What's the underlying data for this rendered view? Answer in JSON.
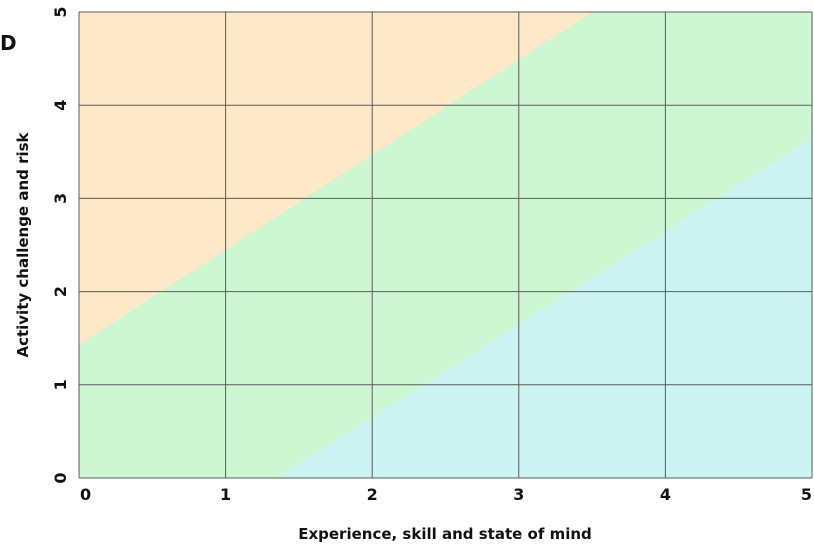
{
  "chart_data": {
    "type": "area",
    "panel_label": "D",
    "title": "",
    "xlabel": "Experience, skill and state of mind",
    "ylabel": "Activity challenge and risk",
    "xlim": [
      0,
      5
    ],
    "ylim": [
      0,
      5
    ],
    "xticks": [
      "0",
      "1",
      "2",
      "3",
      "4",
      "5"
    ],
    "yticks": [
      "0",
      "1",
      "2",
      "3",
      "4",
      "5"
    ],
    "grid": true,
    "regions": [
      {
        "fill": "#fde8c8",
        "boundary_lower": [
          [
            0,
            1.43
          ],
          [
            3.5,
            5
          ]
        ]
      },
      {
        "fill": "#ccf7d2",
        "boundary_lower": [
          [
            1.35,
            0
          ],
          [
            5,
            3.65
          ]
        ]
      },
      {
        "fill": "#cbf4f2"
      }
    ]
  }
}
